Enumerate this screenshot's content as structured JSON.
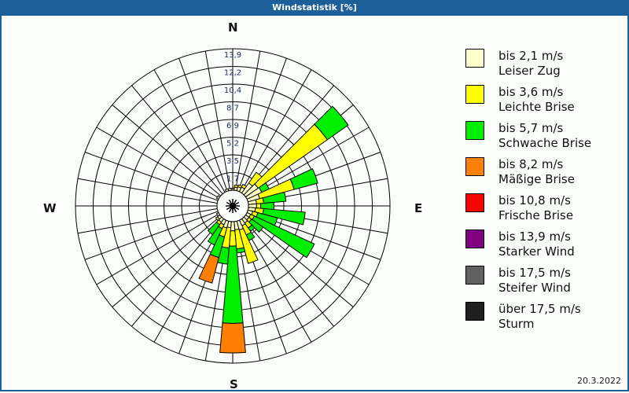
{
  "title": "Windstatistik [%]",
  "date": "20.3.2022",
  "compass": {
    "n": "N",
    "e": "E",
    "s": "S",
    "w": "W"
  },
  "legend": [
    {
      "range": "bis 2,1 m/s",
      "name": "Leiser Zug",
      "color": "#ffffc8"
    },
    {
      "range": "bis 3,6 m/s",
      "name": "Leichte Brise",
      "color": "#ffff00"
    },
    {
      "range": "bis 5,7 m/s",
      "name": "Schwache Brise",
      "color": "#00ee00"
    },
    {
      "range": "bis 8,2 m/s",
      "name": "Mäßige Brise",
      "color": "#ff8000"
    },
    {
      "range": "bis 10,8 m/s",
      "name": "Frische Brise",
      "color": "#ff0000"
    },
    {
      "range": "bis 13,9 m/s",
      "name": "Starker Wind",
      "color": "#800080"
    },
    {
      "range": "bis 17,5 m/s",
      "name": "Steifer Wind",
      "color": "#606060"
    },
    {
      "range": "über 17,5 m/s",
      "name": "Sturm",
      "color": "#202020"
    }
  ],
  "chart_data": {
    "type": "wind-rose",
    "title": "Windstatistik [%]",
    "radial_ticks": [
      "1,7",
      "3,5",
      "5,2",
      "6,9",
      "8,7",
      "10,4",
      "12,2",
      "13,9"
    ],
    "radial_max": 13.9,
    "sector_width_deg": 10,
    "series_order": [
      "bis 2,1 m/s",
      "bis 3,6 m/s",
      "bis 5,7 m/s",
      "bis 8,2 m/s",
      "bis 10,8 m/s",
      "bis 13,9 m/s",
      "bis 17,5 m/s",
      "über 17,5 m/s"
    ],
    "sectors": [
      {
        "dir": 10,
        "values": [
          0.3,
          0.2,
          0,
          0,
          0,
          0,
          0,
          0
        ]
      },
      {
        "dir": 20,
        "values": [
          0.4,
          0.2,
          0,
          0,
          0,
          0,
          0,
          0
        ]
      },
      {
        "dir": 30,
        "values": [
          0.5,
          0.3,
          0,
          0,
          0,
          0,
          0,
          0
        ]
      },
      {
        "dir": 40,
        "values": [
          1.2,
          1.3,
          0,
          0,
          0,
          0,
          0,
          0
        ]
      },
      {
        "dir": 50,
        "values": [
          1.5,
          8.3,
          2.5,
          0,
          0,
          0,
          0,
          0
        ]
      },
      {
        "dir": 60,
        "values": [
          1.6,
          0,
          0.8,
          0,
          0,
          0,
          0,
          0
        ]
      },
      {
        "dir": 70,
        "values": [
          1.2,
          3.5,
          2.4,
          0,
          0,
          0,
          0,
          0
        ]
      },
      {
        "dir": 80,
        "values": [
          0.8,
          0.7,
          2.2,
          0,
          0,
          0,
          0,
          0
        ]
      },
      {
        "dir": 90,
        "values": [
          0.8,
          0.4,
          1.3,
          0,
          0,
          0,
          0,
          0
        ]
      },
      {
        "dir": 100,
        "values": [
          0.7,
          0.8,
          4.1,
          0,
          0,
          0,
          0,
          0
        ]
      },
      {
        "dir": 110,
        "values": [
          0.5,
          0.5,
          2.0,
          0,
          0,
          0,
          0,
          0
        ]
      },
      {
        "dir": 120,
        "values": [
          0.4,
          0.4,
          6.5,
          0,
          0,
          0,
          0,
          0
        ]
      },
      {
        "dir": 130,
        "values": [
          0.4,
          0.3,
          1.4,
          0,
          0,
          0,
          0,
          0
        ]
      },
      {
        "dir": 140,
        "values": [
          0.5,
          0.6,
          0.4,
          0,
          0,
          0,
          0,
          0
        ]
      },
      {
        "dir": 150,
        "values": [
          0.6,
          1.0,
          0.6,
          0,
          0,
          0,
          0,
          0
        ]
      },
      {
        "dir": 160,
        "values": [
          0.9,
          3.4,
          0,
          0,
          0,
          0,
          0,
          0
        ]
      },
      {
        "dir": 170,
        "values": [
          0.8,
          1.9,
          0.4,
          0,
          0,
          0,
          0,
          0
        ]
      },
      {
        "dir": 180,
        "values": [
          0.9,
          1.5,
          7.6,
          2.9,
          0,
          0,
          0,
          0
        ]
      },
      {
        "dir": 190,
        "values": [
          0.6,
          2.0,
          1.6,
          0,
          0,
          0,
          0,
          0
        ]
      },
      {
        "dir": 200,
        "values": [
          0.7,
          0.9,
          2.1,
          2.6,
          0,
          0,
          0,
          0
        ]
      },
      {
        "dir": 210,
        "values": [
          0.5,
          0.4,
          1.8,
          0,
          0,
          0,
          0,
          0
        ]
      },
      {
        "dir": 220,
        "values": [
          0.4,
          0.3,
          1.2,
          0,
          0,
          0,
          0,
          0
        ]
      },
      {
        "dir": 230,
        "values": [
          0.3,
          0.2,
          0,
          0,
          0,
          0,
          0,
          0
        ]
      },
      {
        "dir": 240,
        "values": [
          0.2,
          0,
          0,
          0,
          0,
          0,
          0,
          0
        ]
      },
      {
        "dir": 300,
        "values": [
          0.2,
          0,
          0,
          0,
          0,
          0,
          0,
          0
        ]
      },
      {
        "dir": 340,
        "values": [
          0.2,
          0,
          0,
          0,
          0,
          0,
          0,
          0
        ]
      },
      {
        "dir": 350,
        "values": [
          0.2,
          0,
          0,
          0,
          0,
          0,
          0,
          0
        ]
      },
      {
        "dir": 0,
        "values": [
          0.2,
          0,
          0,
          0,
          0,
          0,
          0,
          0
        ]
      }
    ]
  }
}
